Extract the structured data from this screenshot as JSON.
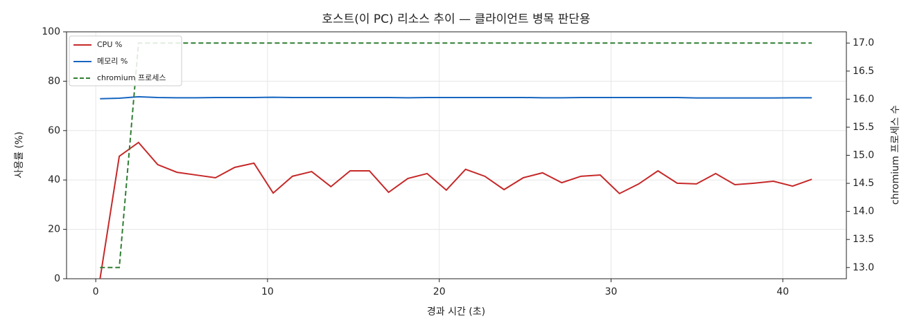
{
  "chart_data": {
    "type": "line",
    "title": "호스트(이 PC) 리소스 추이 — 클라이언트 병목 판단용",
    "xlabel": "경과 시간 (초)",
    "ylabel": "사용률 (%)",
    "y2label": "chromium 프로세스 수",
    "x": [
      0.25,
      1.37,
      2.49,
      3.61,
      4.73,
      5.85,
      6.97,
      8.09,
      9.21,
      10.33,
      11.45,
      12.57,
      13.69,
      14.81,
      15.93,
      17.05,
      18.17,
      19.29,
      20.41,
      21.53,
      22.65,
      23.77,
      24.89,
      26.01,
      27.13,
      28.25,
      29.37,
      30.49,
      31.61,
      32.73,
      33.85,
      34.97,
      36.09,
      37.21,
      38.33,
      39.45,
      40.57,
      41.69
    ],
    "series": [
      {
        "name": "CPU %",
        "color": "#c62828",
        "values": [
          0,
          49.6,
          55.2,
          46.2,
          43.1,
          42.0,
          40.9,
          45.1,
          46.8,
          34.7,
          41.5,
          43.4,
          37.3,
          43.7,
          43.7,
          35.0,
          40.6,
          42.6,
          35.9,
          44.3,
          41.5,
          36.1,
          40.9,
          42.9,
          38.9,
          41.5,
          42.0,
          34.5,
          38.4,
          43.7,
          38.7,
          38.4,
          42.6,
          38.1,
          38.7,
          39.5,
          37.5,
          40.3
        ]
      },
      {
        "name": "메모리 %",
        "color": "#1565c0",
        "values": [
          72.9,
          73.1,
          73.7,
          73.4,
          73.3,
          73.3,
          73.4,
          73.4,
          73.4,
          73.5,
          73.4,
          73.4,
          73.4,
          73.4,
          73.4,
          73.4,
          73.3,
          73.4,
          73.4,
          73.4,
          73.4,
          73.4,
          73.4,
          73.3,
          73.3,
          73.4,
          73.4,
          73.4,
          73.4,
          73.4,
          73.4,
          73.2,
          73.2,
          73.2,
          73.2,
          73.2,
          73.3,
          73.3
        ]
      },
      {
        "name": "chromium 프로세스",
        "color": "#2e7d32",
        "axis": "y2",
        "linestyle": "dashed",
        "values": [
          13,
          13,
          17,
          17,
          17,
          17,
          17,
          17,
          17,
          17,
          17,
          17,
          17,
          17,
          17,
          17,
          17,
          17,
          17,
          17,
          17,
          17,
          17,
          17,
          17,
          17,
          17,
          17,
          17,
          17,
          17,
          17,
          17,
          17,
          17,
          17,
          17,
          17
        ]
      }
    ],
    "xlim": [
      -1.7,
      43.7
    ],
    "xticks": [
      0,
      10,
      20,
      30,
      40
    ],
    "ylim": [
      0,
      100
    ],
    "yticks": [
      0,
      20,
      40,
      60,
      80,
      100
    ],
    "y2lim": [
      12.8,
      17.2
    ],
    "y2ticks": [
      {
        "value": 13,
        "label": "13.0"
      },
      13.5,
      {
        "value": 14,
        "label": "14.0"
      },
      14.5,
      {
        "value": 15,
        "label": "15.0"
      },
      15.5,
      {
        "value": 16,
        "label": "16.0"
      },
      16.5,
      {
        "value": 17,
        "label": "17.0"
      }
    ],
    "grid": true,
    "legend": "upper left"
  }
}
